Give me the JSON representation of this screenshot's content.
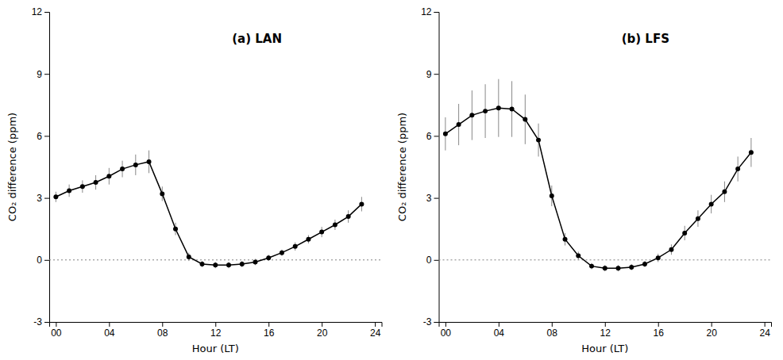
{
  "chart_data": [
    {
      "type": "line",
      "annotation": "(a) LAN",
      "x_label": "Hour (LT)",
      "y_label": "CO₂ difference (ppm)",
      "x": [
        0,
        1,
        2,
        3,
        4,
        5,
        6,
        7,
        8,
        9,
        10,
        11,
        12,
        13,
        14,
        15,
        16,
        17,
        18,
        19,
        20,
        21,
        22,
        23
      ],
      "values": [
        3.05,
        3.35,
        3.55,
        3.75,
        4.05,
        4.4,
        4.6,
        4.75,
        3.2,
        1.5,
        0.15,
        -0.2,
        -0.25,
        -0.25,
        -0.2,
        -0.1,
        0.1,
        0.35,
        0.65,
        1.0,
        1.35,
        1.7,
        2.1,
        2.7
      ],
      "errors": [
        0.25,
        0.3,
        0.3,
        0.35,
        0.4,
        0.4,
        0.5,
        0.55,
        0.35,
        0.3,
        0.2,
        0.15,
        0.15,
        0.15,
        0.15,
        0.15,
        0.15,
        0.15,
        0.2,
        0.2,
        0.25,
        0.25,
        0.3,
        0.35
      ],
      "color": "#000000",
      "marker": "circle",
      "line_style": "solid",
      "hline": 0,
      "xlim": [
        -0.5,
        24.5
      ],
      "xticks": [
        {
          "value": 0,
          "label": "00"
        },
        {
          "value": 4,
          "label": "04"
        },
        {
          "value": 8,
          "label": "08"
        },
        {
          "value": 12,
          "label": "12"
        },
        {
          "value": 16,
          "label": "16"
        },
        {
          "value": 20,
          "label": "20"
        },
        {
          "value": 24,
          "label": "24"
        }
      ],
      "ylim": [
        -3,
        12
      ],
      "yticks": [
        -3,
        0,
        3,
        6,
        9,
        12
      ],
      "grid": false
    },
    {
      "type": "line",
      "annotation": "(b) LFS",
      "x_label": "Hour (LT)",
      "y_label": "CO₂ difference (ppm)",
      "x": [
        0,
        1,
        2,
        3,
        4,
        5,
        6,
        7,
        8,
        9,
        10,
        11,
        12,
        13,
        14,
        15,
        16,
        17,
        18,
        19,
        20,
        21,
        22,
        23
      ],
      "values": [
        6.1,
        6.55,
        7.0,
        7.2,
        7.35,
        7.3,
        6.8,
        5.8,
        3.1,
        1.0,
        0.2,
        -0.3,
        -0.4,
        -0.4,
        -0.35,
        -0.2,
        0.1,
        0.5,
        1.3,
        2.0,
        2.7,
        3.3,
        4.4,
        5.2
      ],
      "errors": [
        0.8,
        1.0,
        1.2,
        1.3,
        1.4,
        1.35,
        1.2,
        0.8,
        0.5,
        0.3,
        0.2,
        0.15,
        0.15,
        0.15,
        0.15,
        0.15,
        0.2,
        0.25,
        0.35,
        0.4,
        0.45,
        0.5,
        0.6,
        0.7
      ],
      "color": "#000000",
      "marker": "circle",
      "line_style": "solid",
      "hline": 0,
      "xlim": [
        -0.5,
        24.5
      ],
      "xticks": [
        {
          "value": 0,
          "label": "00"
        },
        {
          "value": 4,
          "label": "04"
        },
        {
          "value": 8,
          "label": "08"
        },
        {
          "value": 12,
          "label": "12"
        },
        {
          "value": 16,
          "label": "16"
        },
        {
          "value": 20,
          "label": "20"
        },
        {
          "value": 24,
          "label": "24"
        }
      ],
      "ylim": [
        -3,
        12
      ],
      "yticks": [
        -3,
        0,
        3,
        6,
        9,
        12
      ],
      "grid": false
    }
  ]
}
